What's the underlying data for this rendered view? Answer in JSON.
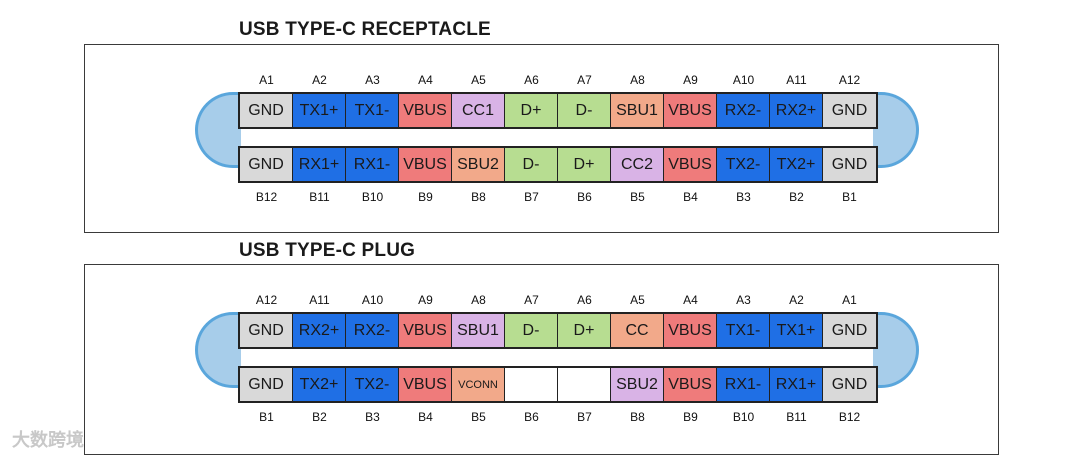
{
  "colors": {
    "GND": "#d9d9d9",
    "TX": "#1f6fe5",
    "VBUS": "#ef7b7b",
    "CC": "#d9b3e6",
    "SBU": "#f2a98a",
    "D": "#b7dd91",
    "EMPTY": "#ffffff"
  },
  "receptacle": {
    "title": "USB TYPE-C RECEPTACLE",
    "top_labels": [
      "A1",
      "A2",
      "A3",
      "A4",
      "A5",
      "A6",
      "A7",
      "A8",
      "A9",
      "A10",
      "A11",
      "A12"
    ],
    "top_pins": [
      {
        "name": "GND",
        "kind": "GND"
      },
      {
        "name": "TX1+",
        "kind": "TX"
      },
      {
        "name": "TX1-",
        "kind": "TX"
      },
      {
        "name": "VBUS",
        "kind": "VBUS"
      },
      {
        "name": "CC1",
        "kind": "CC"
      },
      {
        "name": "D+",
        "kind": "D"
      },
      {
        "name": "D-",
        "kind": "D"
      },
      {
        "name": "SBU1",
        "kind": "SBU"
      },
      {
        "name": "VBUS",
        "kind": "VBUS"
      },
      {
        "name": "RX2-",
        "kind": "TX"
      },
      {
        "name": "RX2+",
        "kind": "TX"
      },
      {
        "name": "GND",
        "kind": "GND"
      }
    ],
    "bottom_pins": [
      {
        "name": "GND",
        "kind": "GND"
      },
      {
        "name": "RX1+",
        "kind": "TX"
      },
      {
        "name": "RX1-",
        "kind": "TX"
      },
      {
        "name": "VBUS",
        "kind": "VBUS"
      },
      {
        "name": "SBU2",
        "kind": "SBU"
      },
      {
        "name": "D-",
        "kind": "D"
      },
      {
        "name": "D+",
        "kind": "D"
      },
      {
        "name": "CC2",
        "kind": "CC"
      },
      {
        "name": "VBUS",
        "kind": "VBUS"
      },
      {
        "name": "TX2-",
        "kind": "TX"
      },
      {
        "name": "TX2+",
        "kind": "TX"
      },
      {
        "name": "GND",
        "kind": "GND"
      }
    ],
    "bottom_labels": [
      "B12",
      "B11",
      "B10",
      "B9",
      "B8",
      "B7",
      "B6",
      "B5",
      "B4",
      "B3",
      "B2",
      "B1"
    ]
  },
  "plug": {
    "title": "USB TYPE-C PLUG",
    "top_labels": [
      "A12",
      "A11",
      "A10",
      "A9",
      "A8",
      "A7",
      "A6",
      "A5",
      "A4",
      "A3",
      "A2",
      "A1"
    ],
    "top_pins": [
      {
        "name": "GND",
        "kind": "GND"
      },
      {
        "name": "RX2+",
        "kind": "TX"
      },
      {
        "name": "RX2-",
        "kind": "TX"
      },
      {
        "name": "VBUS",
        "kind": "VBUS"
      },
      {
        "name": "SBU1",
        "kind": "CC"
      },
      {
        "name": "D-",
        "kind": "D"
      },
      {
        "name": "D+",
        "kind": "D"
      },
      {
        "name": "CC",
        "kind": "SBU"
      },
      {
        "name": "VBUS",
        "kind": "VBUS"
      },
      {
        "name": "TX1-",
        "kind": "TX"
      },
      {
        "name": "TX1+",
        "kind": "TX"
      },
      {
        "name": "GND",
        "kind": "GND"
      }
    ],
    "bottom_pins": [
      {
        "name": "GND",
        "kind": "GND"
      },
      {
        "name": "TX2+",
        "kind": "TX"
      },
      {
        "name": "TX2-",
        "kind": "TX"
      },
      {
        "name": "VBUS",
        "kind": "VBUS"
      },
      {
        "name": "VCONN",
        "kind": "SBU",
        "small": true
      },
      {
        "name": "",
        "kind": "EMPTY"
      },
      {
        "name": "",
        "kind": "EMPTY"
      },
      {
        "name": "SBU2",
        "kind": "CC"
      },
      {
        "name": "VBUS",
        "kind": "VBUS"
      },
      {
        "name": "RX1-",
        "kind": "TX"
      },
      {
        "name": "RX1+",
        "kind": "TX"
      },
      {
        "name": "GND",
        "kind": "GND"
      }
    ],
    "bottom_labels": [
      "B1",
      "B2",
      "B3",
      "B4",
      "B5",
      "B6",
      "B7",
      "B8",
      "B9",
      "B10",
      "B11",
      "B12"
    ]
  },
  "watermark": "大数跨境"
}
